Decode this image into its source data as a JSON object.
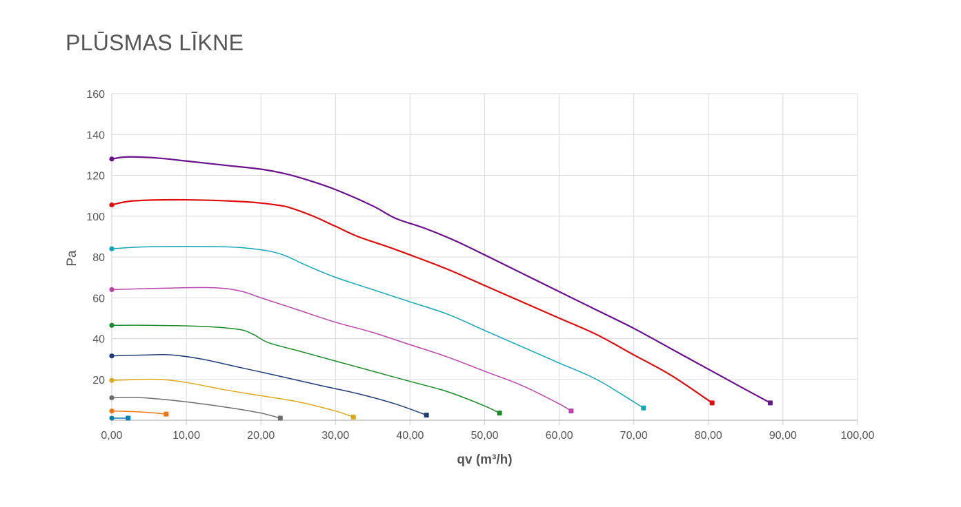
{
  "chart_data": {
    "type": "line",
    "title": "PLŪSMAS LĪKNE",
    "xlabel": "qv (m³/h)",
    "ylabel": "Pa",
    "xlim": [
      0,
      100
    ],
    "ylim": [
      0,
      160
    ],
    "x_ticks": [
      "0,00",
      "10,00",
      "20,00",
      "30,00",
      "40,00",
      "50,00",
      "60,00",
      "70,00",
      "80,00",
      "90,00",
      "100,00"
    ],
    "y_ticks": [
      "20",
      "40",
      "60",
      "80",
      "100",
      "120",
      "140",
      "160"
    ],
    "grid": true,
    "legend": "none",
    "series": [
      {
        "color": "#6a0f8e",
        "points": [
          [
            0,
            128
          ],
          [
            2,
            129
          ],
          [
            6,
            128.5
          ],
          [
            10,
            127
          ],
          [
            15,
            125
          ],
          [
            20,
            123
          ],
          [
            23,
            121
          ],
          [
            26,
            118
          ],
          [
            30,
            113
          ],
          [
            35,
            105
          ],
          [
            38,
            99
          ],
          [
            42,
            94
          ],
          [
            46,
            88
          ],
          [
            50,
            81
          ],
          [
            55,
            72
          ],
          [
            60,
            63
          ],
          [
            65,
            54
          ],
          [
            70,
            45
          ],
          [
            75,
            35
          ],
          [
            80,
            25
          ],
          [
            85,
            15
          ],
          [
            88.3,
            8.5
          ]
        ]
      },
      {
        "color": "#e00b0b",
        "points": [
          [
            0,
            105.5
          ],
          [
            3,
            107.5
          ],
          [
            10,
            108
          ],
          [
            18,
            107
          ],
          [
            22,
            105.5
          ],
          [
            24,
            104
          ],
          [
            27,
            100
          ],
          [
            30,
            95
          ],
          [
            33,
            90
          ],
          [
            37,
            85
          ],
          [
            40,
            81
          ],
          [
            45,
            74
          ],
          [
            50,
            66
          ],
          [
            55,
            58
          ],
          [
            60,
            50
          ],
          [
            65,
            42
          ],
          [
            70,
            32
          ],
          [
            75,
            22
          ],
          [
            80.5,
            8.5
          ]
        ]
      },
      {
        "color": "#11a6b7",
        "points": [
          [
            0,
            84
          ],
          [
            5,
            85
          ],
          [
            15,
            85
          ],
          [
            20,
            83.5
          ],
          [
            23,
            81
          ],
          [
            26,
            76
          ],
          [
            30,
            70
          ],
          [
            35,
            64
          ],
          [
            40,
            58
          ],
          [
            45,
            52
          ],
          [
            50,
            44
          ],
          [
            55,
            36
          ],
          [
            60,
            28
          ],
          [
            65,
            20
          ],
          [
            70,
            9
          ],
          [
            71.3,
            6
          ]
        ]
      },
      {
        "color": "#bb44aa",
        "points": [
          [
            0,
            64
          ],
          [
            5,
            64.5
          ],
          [
            13,
            65
          ],
          [
            17,
            63.5
          ],
          [
            20,
            60
          ],
          [
            25,
            54
          ],
          [
            30,
            48
          ],
          [
            35,
            43
          ],
          [
            40,
            37
          ],
          [
            45,
            31
          ],
          [
            50,
            24
          ],
          [
            55,
            17
          ],
          [
            60,
            8
          ],
          [
            61.6,
            4.5
          ]
        ]
      },
      {
        "color": "#1a8a28",
        "points": [
          [
            0,
            46.5
          ],
          [
            5,
            46.5
          ],
          [
            12,
            46
          ],
          [
            17,
            44.5
          ],
          [
            19,
            42
          ],
          [
            21,
            38
          ],
          [
            25,
            34
          ],
          [
            30,
            29
          ],
          [
            35,
            24
          ],
          [
            40,
            19
          ],
          [
            45,
            14
          ],
          [
            50,
            7
          ],
          [
            52,
            3.5
          ]
        ]
      },
      {
        "color": "#1f3c78",
        "points": [
          [
            0,
            31.5
          ],
          [
            5,
            32
          ],
          [
            8,
            32
          ],
          [
            12,
            30
          ],
          [
            17,
            26
          ],
          [
            22,
            22
          ],
          [
            28,
            17
          ],
          [
            33,
            13
          ],
          [
            38,
            8
          ],
          [
            42.2,
            2.5
          ]
        ]
      },
      {
        "color": "#dda81a",
        "points": [
          [
            0,
            19.5
          ],
          [
            6,
            20
          ],
          [
            10,
            18.5
          ],
          [
            15,
            15
          ],
          [
            20,
            12
          ],
          [
            25,
            9
          ],
          [
            30,
            4.5
          ],
          [
            32.4,
            1.5
          ]
        ]
      },
      {
        "color": "#6e6e6e",
        "points": [
          [
            0,
            11
          ],
          [
            4,
            11
          ],
          [
            10,
            9
          ],
          [
            16,
            6
          ],
          [
            20,
            3.5
          ],
          [
            22.6,
            1
          ]
        ]
      },
      {
        "color": "#f2760f",
        "points": [
          [
            0,
            4.5
          ],
          [
            4,
            4
          ],
          [
            7.3,
            3
          ]
        ]
      },
      {
        "color": "#0b7fb5",
        "points": [
          [
            0,
            1
          ],
          [
            2.2,
            1
          ]
        ]
      }
    ]
  }
}
